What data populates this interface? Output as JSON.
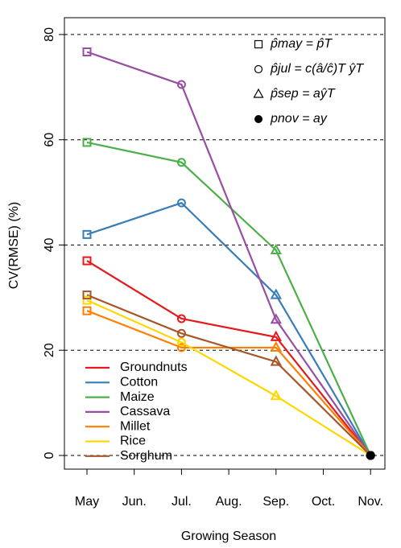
{
  "chart_data": {
    "type": "line",
    "y_label": "CV(RMSE) (%)",
    "x_label": "Growing Season",
    "categories": [
      "May",
      "Jun.",
      "Jul.",
      "Aug.",
      "Sep.",
      "Oct.",
      "Nov."
    ],
    "x": [
      "May",
      "Jul.",
      "Sep.",
      "Nov."
    ],
    "ylim": [
      -2.6,
      83.2
    ],
    "yticks": [
      0,
      20,
      40,
      60,
      80
    ],
    "grid": true,
    "legend": "bottom-left",
    "series": [
      {
        "name": "Groundnuts",
        "color": "#e41a1c",
        "values": [
          37,
          26,
          22.5,
          0
        ]
      },
      {
        "name": "Cotton",
        "color": "#377eb8",
        "values": [
          42,
          48,
          30.5,
          0
        ]
      },
      {
        "name": "Maize",
        "color": "#4daf4a",
        "values": [
          59.5,
          55.7,
          39,
          0
        ]
      },
      {
        "name": "Cassava",
        "color": "#984ea3",
        "values": [
          76.7,
          70.5,
          25.8,
          0
        ]
      },
      {
        "name": "Millet",
        "color": "#ff7f00",
        "values": [
          27.5,
          20.5,
          20.5,
          0
        ]
      },
      {
        "name": "Rice",
        "color": "#ffd700",
        "values": [
          29.5,
          21.5,
          11.3,
          0
        ]
      },
      {
        "name": "Sorghum",
        "color": "#a65628",
        "values": [
          30.5,
          23.2,
          17.8,
          0
        ]
      }
    ],
    "marker_legend": [
      "p̂may = p̂T",
      "p̂jul = c(â/ĉ)T ŷT",
      "p̂sep = aŷT",
      "pnov = ay"
    ]
  }
}
